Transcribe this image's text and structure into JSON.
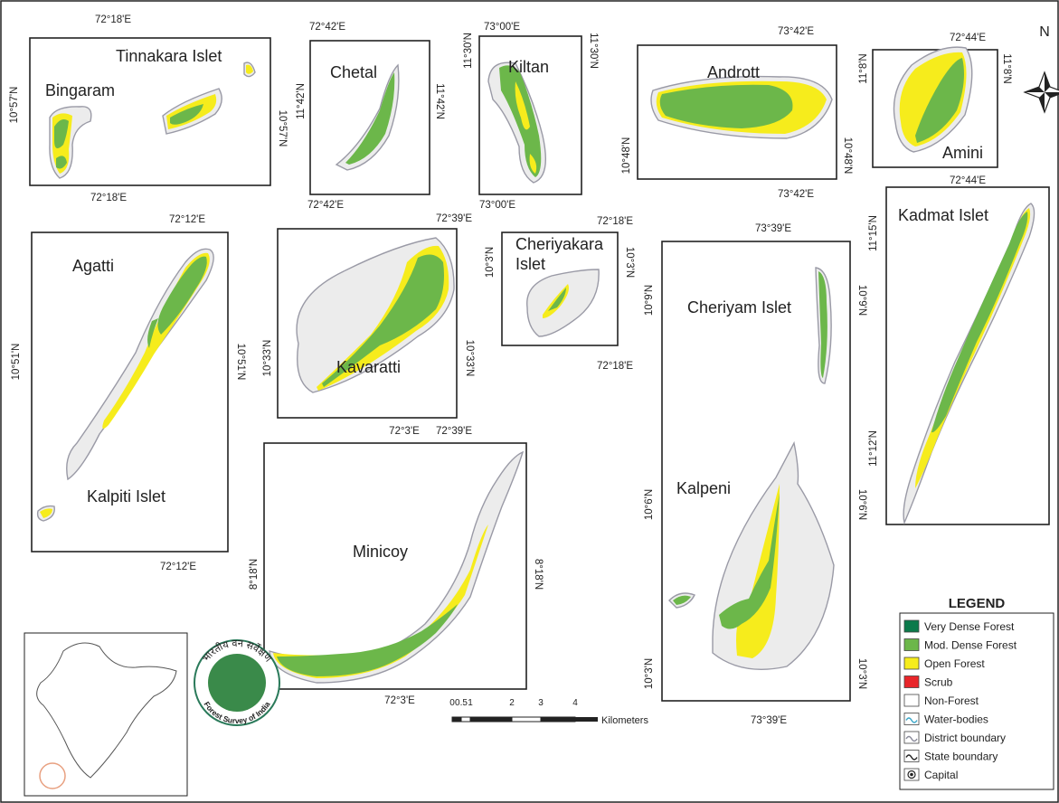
{
  "north": "N",
  "panels": [
    {
      "names": [
        "Bingaram",
        "Tinnakara Islet"
      ],
      "coordinates": [
        "72°18'E",
        "72°18'E",
        "10°57'N",
        "10°57'N"
      ]
    },
    {
      "names": [
        "Chetal"
      ],
      "coordinates": [
        "72°42'E",
        "72°42'E",
        "11°42'N",
        "11°42'N"
      ]
    },
    {
      "names": [
        "Kiltan"
      ],
      "coordinates": [
        "73°00'E",
        "73°00'E",
        "11°30'N",
        "11°30'N"
      ]
    },
    {
      "names": [
        "Andrott"
      ],
      "coordinates": [
        "73°42'E",
        "73°42'E",
        "10°48'N",
        "10°48'N"
      ]
    },
    {
      "names": [
        "Amini"
      ],
      "coordinates": [
        "72°44'E",
        "72°44'E",
        "11°8'N",
        "11°8'N"
      ]
    },
    {
      "names": [
        "Agatti",
        "Kalpiti Islet"
      ],
      "coordinates": [
        "72°12'E",
        "72°12'E",
        "10°51'N",
        "10°51'N"
      ]
    },
    {
      "names": [
        "Kavaratti"
      ],
      "coordinates": [
        "72°39'E",
        "72°39'E",
        "10°33'N",
        "10°33'N"
      ]
    },
    {
      "names": [
        "Cheriyakara",
        "Islet"
      ],
      "coordinates": [
        "72°18'E",
        "72°18'E",
        "10°3'N",
        "10°3'N"
      ]
    },
    {
      "names": [
        "Cheriyam Islet",
        "Kalpeni"
      ],
      "coordinates": [
        "73°39'E",
        "73°39'E",
        "10°9'N",
        "10°6'N",
        "10°3'N",
        "10°9'N",
        "10°6'N",
        "10°3'N"
      ]
    },
    {
      "names": [
        "Kadmat Islet"
      ],
      "coordinates": [
        "11°15'N",
        "11°12'N"
      ]
    },
    {
      "names": [
        "Minicoy"
      ],
      "coordinates": [
        "72°3'E",
        "72°3'E",
        "8°18'N",
        "8°18'N"
      ]
    }
  ],
  "scale_bar": {
    "ticks": [
      "0",
      "0.5",
      "1",
      "2",
      "3",
      "4"
    ],
    "unit": "Kilometers"
  },
  "legend": {
    "title": "LEGEND",
    "items": [
      {
        "label": "Very Dense Forest",
        "color": "#0b7a4b"
      },
      {
        "label": "Mod. Dense Forest",
        "color": "#6cb74a"
      },
      {
        "label": "Open Forest",
        "color": "#f6ec1c"
      },
      {
        "label": "Scrub",
        "color": "#e8252a"
      },
      {
        "label": "Non-Forest",
        "color": "#ffffff"
      },
      {
        "label": "Water-bodies",
        "color": "#3aa6c8"
      },
      {
        "label": "District boundary",
        "color": "#8a8a9a"
      },
      {
        "label": "State boundary",
        "color": "#222222"
      },
      {
        "label": "Capital",
        "color": "#222222"
      }
    ]
  },
  "logo": {
    "hindi": "भारतीय वन सर्वेक्षण",
    "english": "Forest Survey of India"
  }
}
